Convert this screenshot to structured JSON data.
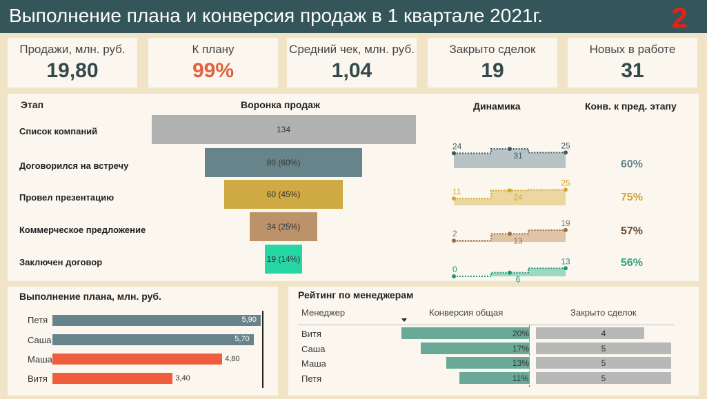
{
  "header": {
    "title": "Выполнение плана и конверсия продаж в 1 квартале 2021г.",
    "number": "2"
  },
  "kpis": [
    {
      "label": "Продажи, млн. руб.",
      "value": "19,80",
      "color": "#33494c"
    },
    {
      "label": "К плану",
      "value": "99%",
      "color": "#e0623f"
    },
    {
      "label": "Средний чек, млн. руб.",
      "value": "1,04",
      "color": "#33494c"
    },
    {
      "label": "Закрыто сделок",
      "value": "19",
      "color": "#33494c"
    },
    {
      "label": "Новых в работе",
      "value": "31",
      "color": "#33494c"
    }
  ],
  "funnel": {
    "headers": {
      "stage": "Этап",
      "funnel": "Воронка продаж",
      "dynamics": "Динамика",
      "conversion": "Конв. к пред. этапу"
    },
    "stages": [
      {
        "name": "Список компаний",
        "count": 134,
        "label": "134",
        "color": "#b1b1b1",
        "conversion": "",
        "dyn": null
      },
      {
        "name": "Договорился на встречу",
        "count": 80,
        "label": "80 (60%)",
        "color": "#67848b",
        "conversion": "60%",
        "conv_color": "#67848b",
        "dyn": {
          "values": [
            24,
            31,
            25
          ],
          "labels": [
            "24",
            "31",
            "25"
          ],
          "line": "#3b5b63",
          "fill": "#b7c3c4"
        }
      },
      {
        "name": "Провел презентацию",
        "count": 60,
        "label": "60 (45%)",
        "color": "#cfaa44",
        "conversion": "75%",
        "conv_color": "#d3a33c",
        "dyn": {
          "values": [
            11,
            24,
            25
          ],
          "labels": [
            "11",
            "24",
            "25"
          ],
          "line": "#d4a62a",
          "fill": "#ecd7a0"
        }
      },
      {
        "name": "Коммерческое предложение",
        "count": 34,
        "label": "34 (25%)",
        "color": "#bc926b",
        "conversion": "57%",
        "conv_color": "#6b4c31",
        "dyn": {
          "values": [
            2,
            13,
            19
          ],
          "labels": [
            "2",
            "13",
            "19"
          ],
          "line": "#9b6f4a",
          "fill": "#dfc4a6"
        }
      },
      {
        "name": "Заключен договор",
        "count": 19,
        "label": "19 (14%)",
        "color": "#27d6a5",
        "conversion": "56%",
        "conv_color": "#2fa47c",
        "dyn": {
          "values": [
            0,
            6,
            13
          ],
          "labels": [
            "0",
            "6",
            "13"
          ],
          "line": "#1d9870",
          "fill": "#9ed8c3"
        }
      }
    ]
  },
  "plan": {
    "title": "Выполнение плана, млн. руб.",
    "target": 6,
    "people": [
      {
        "name": "Петя",
        "value": 5.9,
        "label": "5,90",
        "color": "#67848b"
      },
      {
        "name": "Саша",
        "value": 5.7,
        "label": "5,70",
        "color": "#67848b"
      },
      {
        "name": "Маша",
        "value": 4.8,
        "label": "4,80",
        "color": "#ee5e3c"
      },
      {
        "name": "Витя",
        "value": 3.4,
        "label": "3,40",
        "color": "#ee5e3c"
      }
    ]
  },
  "rating": {
    "title": "Рейтинг по менеджерам",
    "columns": [
      "Менеджер",
      "Конверсия общая",
      "Закрыто сделок"
    ],
    "sort_icon": "sort-desc-icon",
    "rows": [
      {
        "name": "Витя",
        "conv": 20,
        "conv_label": "20%",
        "deals": 4,
        "deals_label": "4"
      },
      {
        "name": "Саша",
        "conv": 17,
        "conv_label": "17%",
        "deals": 5,
        "deals_label": "5"
      },
      {
        "name": "Маша",
        "conv": 13,
        "conv_label": "13%",
        "deals": 5,
        "deals_label": "5"
      },
      {
        "name": "Петя",
        "conv": 11,
        "conv_label": "11%",
        "deals": 5,
        "deals_label": "5"
      }
    ]
  }
}
